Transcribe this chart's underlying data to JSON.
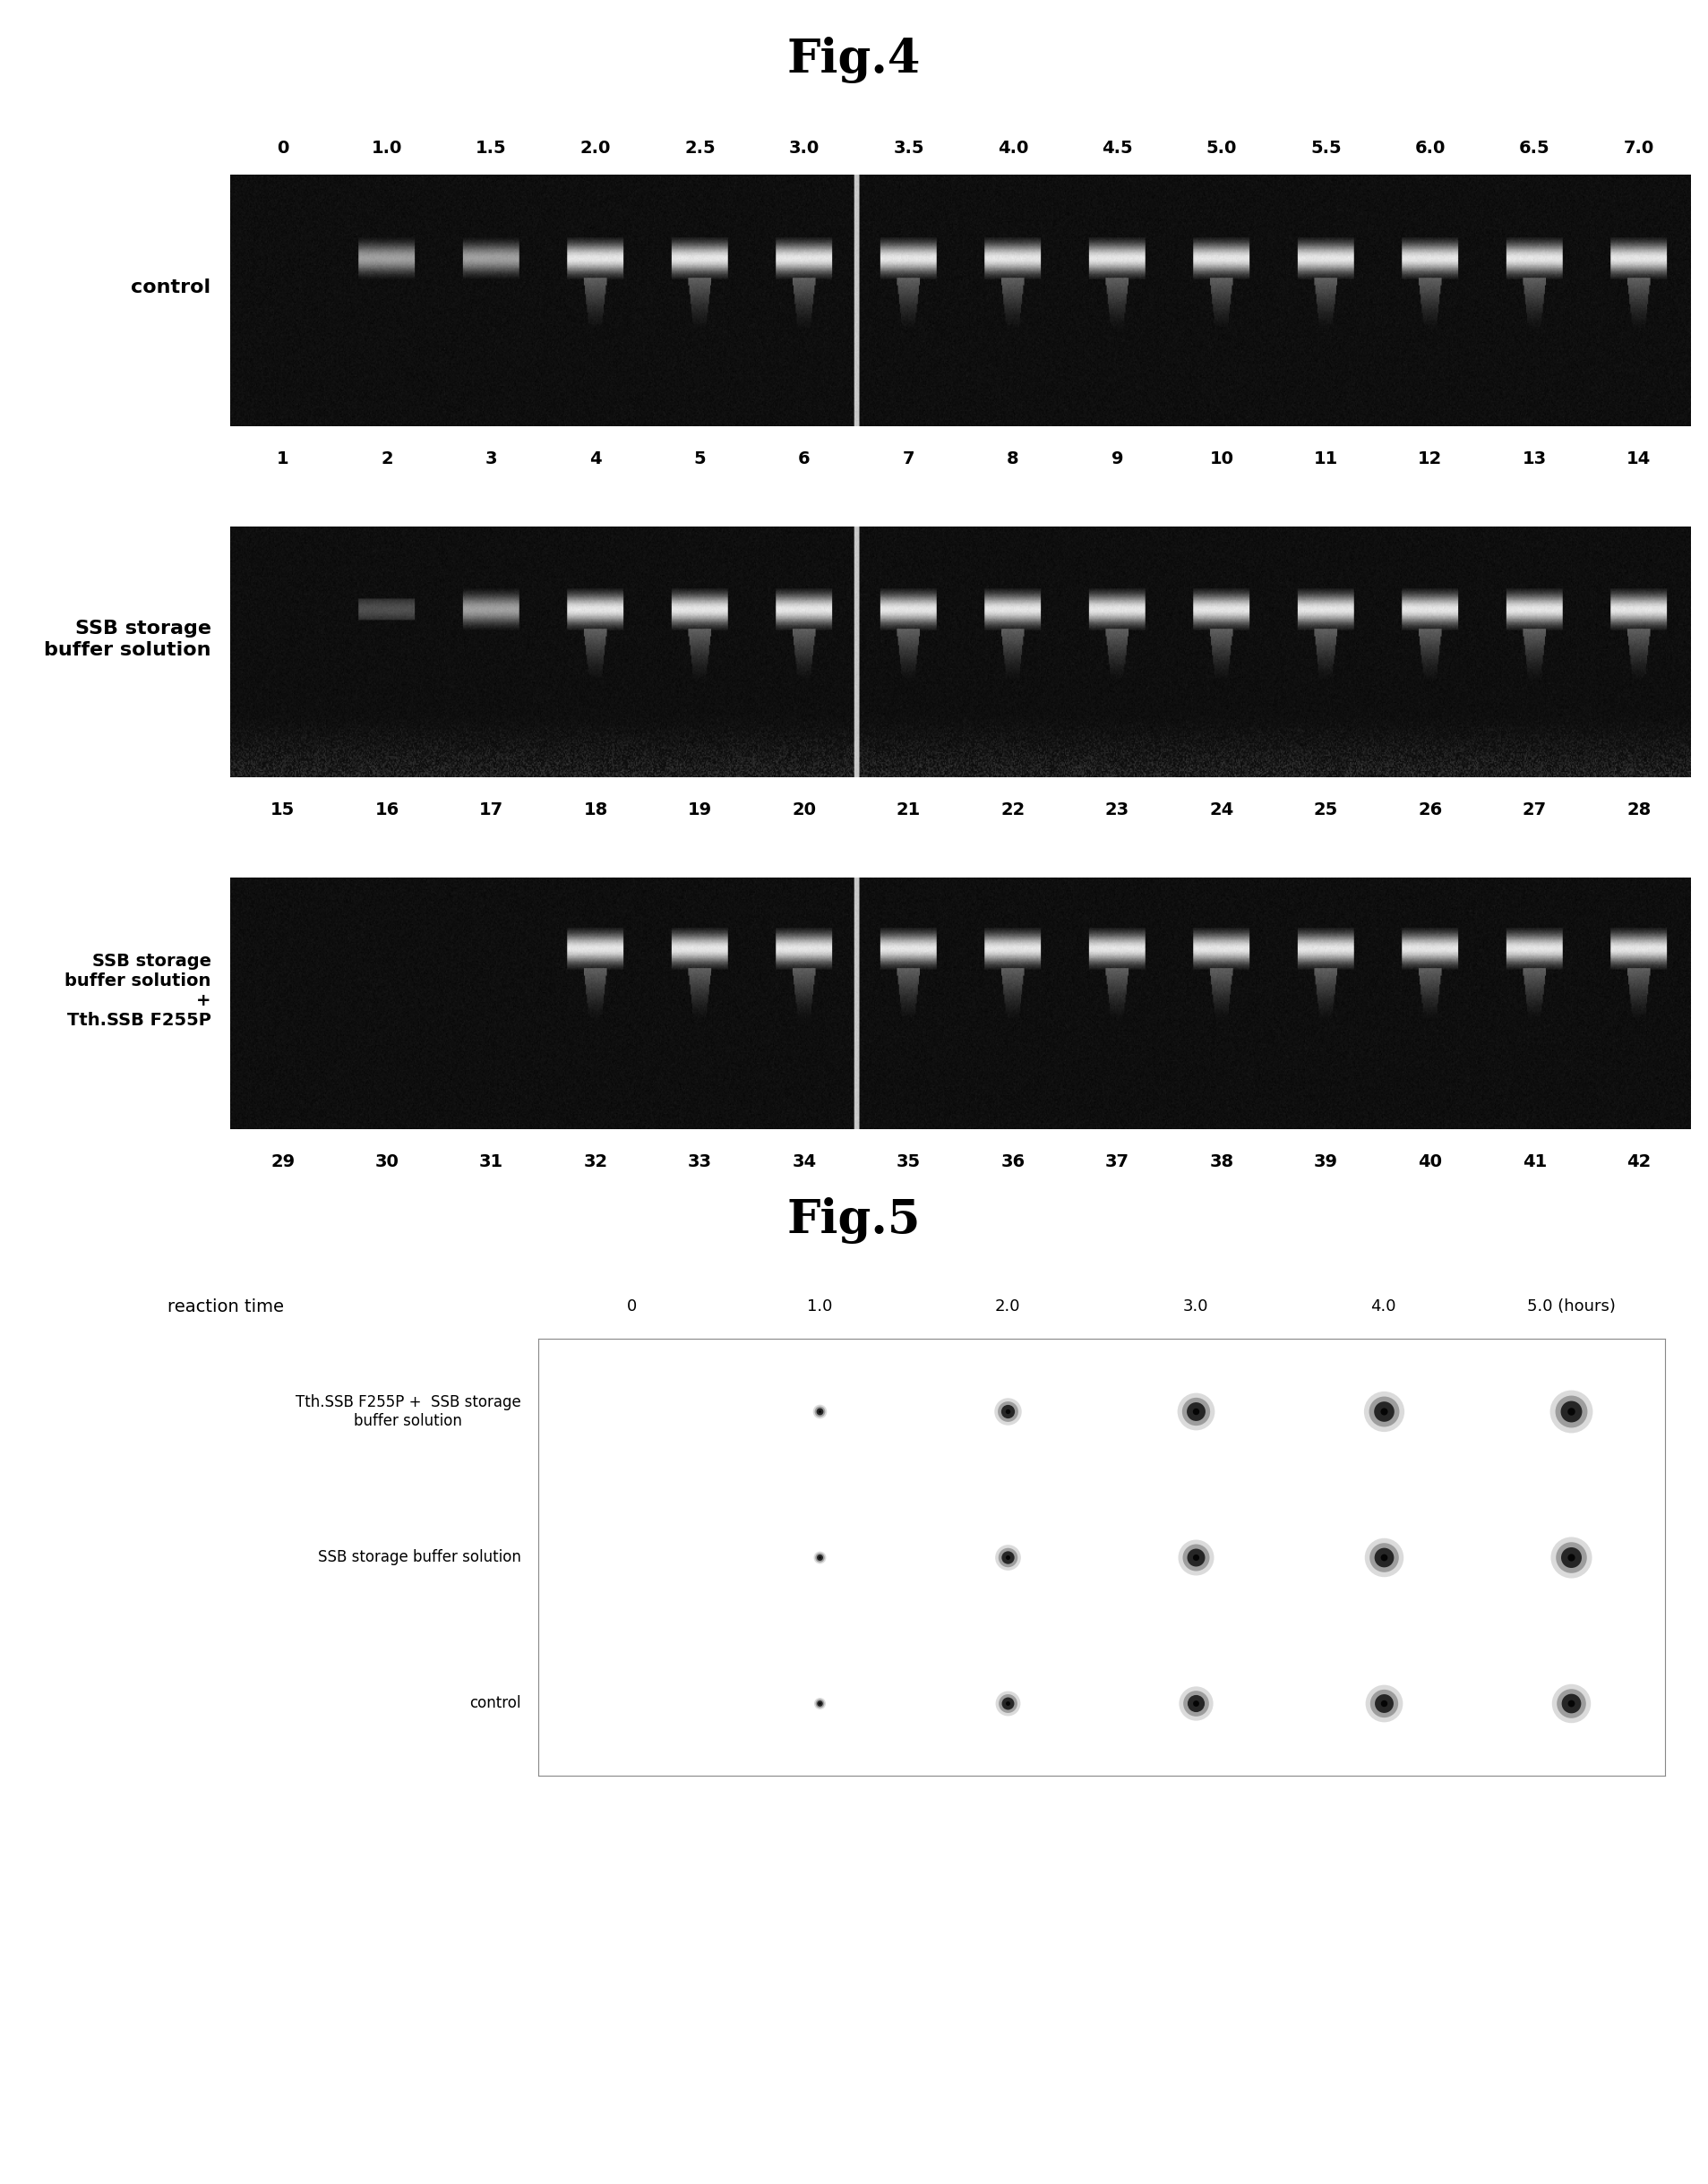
{
  "fig4_title": "Fig.4",
  "fig5_title": "Fig.5",
  "fig4_top_labels": [
    "0",
    "1.0",
    "1.5",
    "2.0",
    "2.5",
    "3.0",
    "3.5",
    "4.0",
    "4.5",
    "5.0",
    "5.5",
    "6.0",
    "6.5",
    "7.0"
  ],
  "fig4_row1_bottom_labels": [
    "1",
    "2",
    "3",
    "4",
    "5",
    "6",
    "7",
    "8",
    "9",
    "10",
    "11",
    "12",
    "13",
    "14"
  ],
  "fig4_row2_bottom_labels": [
    "15",
    "16",
    "17",
    "18",
    "19",
    "20",
    "21",
    "22",
    "23",
    "24",
    "25",
    "26",
    "27",
    "28"
  ],
  "fig4_row3_bottom_labels": [
    "29",
    "30",
    "31",
    "32",
    "33",
    "34",
    "35",
    "36",
    "37",
    "38",
    "39",
    "40",
    "41",
    "42"
  ],
  "fig4_row_labels": [
    "control",
    "SSB storage\nbuffer solution",
    "SSB storage\nbuffer solution\n+\nTth.SSB F255P"
  ],
  "fig5_col_labels": [
    "0",
    "1.0",
    "2.0",
    "3.0",
    "4.0",
    "5.0 (hours)"
  ],
  "fig5_row_labels": [
    "Tth.SSB F255P +  SSB storage\nbuffer solution",
    "SSB storage buffer solution",
    "control"
  ],
  "reaction_time_label": "reaction time",
  "background_color": "#ffffff",
  "gel_bg": 15,
  "band_bright": 230,
  "band_mid": 160,
  "noise_level": 60,
  "dot_radii": [
    [
      0,
      18,
      35,
      48,
      52,
      55
    ],
    [
      0,
      16,
      33,
      46,
      50,
      53
    ],
    [
      0,
      15,
      32,
      44,
      48,
      50
    ]
  ]
}
